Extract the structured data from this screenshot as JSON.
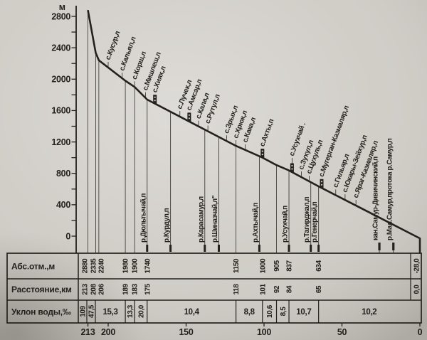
{
  "colors": {
    "paper": "#cfccc6",
    "ink": "#23211d"
  },
  "y_axis_unit_label": "м",
  "x_scale_labels": [
    "213",
    "200",
    "150",
    "100",
    "50",
    "0"
  ],
  "chart_data": {
    "type": "line",
    "description": "Longitudinal water-surface profile of a river with settlements and tributaries marked",
    "ylabel": "м",
    "y_axis": {
      "min": 0,
      "max": 2800,
      "major_label_step": 400,
      "minor_tick_step": 200
    },
    "x_axis": {
      "unit": "км",
      "scale_ticks": [
        213,
        200,
        150,
        100,
        50,
        0
      ],
      "direction": "right-to-left"
    },
    "profile_points": [
      {
        "km": 213,
        "elev": 2880
      },
      {
        "km": 208,
        "elev": 2335
      },
      {
        "km": 206,
        "elev": 2240
      },
      {
        "km": 189,
        "elev": 1980
      },
      {
        "km": 183,
        "elev": 1900
      },
      {
        "km": 175,
        "elev": 1740
      },
      {
        "km": 118,
        "elev": 1150
      },
      {
        "km": 101,
        "elev": 1000
      },
      {
        "km": 92,
        "elev": 905
      },
      {
        "km": 84,
        "elev": 837
      },
      {
        "km": 65,
        "elev": 634
      },
      {
        "km": 0,
        "elev": -28
      }
    ],
    "unlabeled_drop_kms": [
      213,
      208,
      206,
      189,
      183,
      118,
      92
    ],
    "settlements": [
      {
        "name": "с.Кусур,л",
        "km": 200
      },
      {
        "name": "с.Кальял,л",
        "km": 191
      },
      {
        "name": "с.Корш,л",
        "km": 183
      },
      {
        "name": "с.Мишлеш,л",
        "km": 176
      },
      {
        "name": "с.Хиях,л",
        "km": 170,
        "marker": true
      },
      {
        "name": "с.Лучек,л",
        "km": 154
      },
      {
        "name": "с.Амсар,л",
        "km": 148,
        "marker": true
      },
      {
        "name": "с.Кала,л",
        "km": 142
      },
      {
        "name": "с.Рутул,л",
        "km": 136
      },
      {
        "name": "с.Зрых,л",
        "km": 124
      },
      {
        "name": "с.Хрюк,л",
        "km": 118
      },
      {
        "name": "с.Кака,л",
        "km": 112
      },
      {
        "name": "с.Ахты,п",
        "km": 101,
        "marker": true
      },
      {
        "name": "с.Усухчай .",
        "km": 82,
        "marker": true,
        "tall": true
      },
      {
        "name": "с.Зухул,л",
        "km": 76
      },
      {
        "name": "с.Цухуль,п",
        "km": 71
      },
      {
        "name": "с.Мугерган-Казмаляр,л",
        "km": 63,
        "marker": true
      },
      {
        "name": "с.Гильяр,л",
        "km": 54
      },
      {
        "name": "с.Юкары-Зейхур,п",
        "km": 48
      },
      {
        "name": "с.Яраг-Казмаляр,л",
        "km": 41
      }
    ],
    "tributaries": [
      {
        "name": "р.Дюльтычай,п",
        "km": 175
      },
      {
        "name": "р.Курдул,п",
        "km": 160
      },
      {
        "name": "р.Карасамур,л",
        "km": 138
      },
      {
        "name": "р.Шиназчай,л\"",
        "km": 129
      },
      {
        "name": "р.Ахтычай,п",
        "km": 103
      },
      {
        "name": "р.Усухчай,п",
        "km": 84
      },
      {
        "name": "р.Тагирджал,п",
        "km": 70
      },
      {
        "name": "р.Генерчай,п",
        "km": 65
      },
      {
        "name": "кан.Самур-Дивичинский,п",
        "km": 26,
        "no_leader": true
      },
      {
        "name": "р.Мал.Самур,протока р.Самур,п",
        "km": 17,
        "no_leader": true
      }
    ]
  },
  "table": {
    "rows": [
      {
        "label": "Абс.отм.,м",
        "values": [
          "2880",
          "2335",
          "2240",
          "1980",
          "1900",
          "1740",
          "1150",
          "1000",
          "905",
          "837",
          "634",
          "-28,0"
        ]
      },
      {
        "label": "Расстояние,км",
        "values": [
          "213",
          "208",
          "206",
          "189",
          "183",
          "175",
          "118",
          "101",
          "92",
          "84",
          "65",
          "0,0"
        ]
      },
      {
        "label": "Уклон воды,‰",
        "cells": [
          {
            "v": "109",
            "rot": true
          },
          {
            "v": "47,5",
            "rot": true
          },
          {
            "v": "15,3"
          },
          {
            "v": "13,3",
            "rot": true
          },
          {
            "v": "20,0",
            "rot": true
          },
          {
            "v": "10,4"
          },
          {
            "v": "8,8"
          },
          {
            "v": "10,6",
            "rot": true
          },
          {
            "v": "8,5",
            "rot": true
          },
          {
            "v": "10,7"
          },
          {
            "v": "10,2"
          }
        ]
      }
    ]
  }
}
